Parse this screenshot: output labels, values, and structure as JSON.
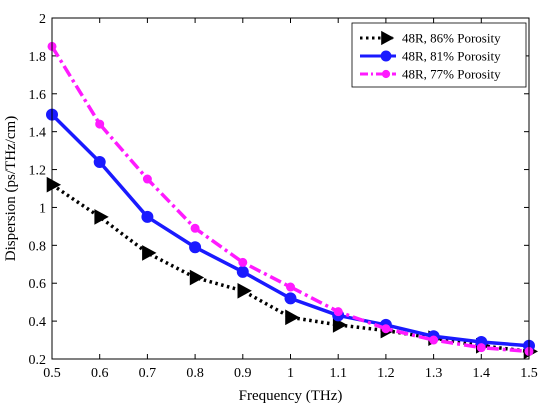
{
  "chart_data": {
    "type": "line",
    "title": "",
    "xlabel": "Frequency (THz)",
    "ylabel": "Dispersion (ps/THz/cm)",
    "xlim": [
      0.5,
      1.5
    ],
    "ylim": [
      0.2,
      2.0
    ],
    "x_ticks": [
      "0.5",
      "0.6",
      "0.7",
      "0.8",
      "0.9",
      "1",
      "1.1",
      "1.2",
      "1.3",
      "1.4",
      "1.5"
    ],
    "y_ticks": [
      "0.2",
      "0.4",
      "0.6",
      "0.8",
      "1",
      "1.2",
      "1.4",
      "1.6",
      "1.8",
      "2"
    ],
    "grid": false,
    "legend_position": "top-right",
    "x": [
      0.5,
      0.6,
      0.7,
      0.8,
      0.9,
      1.0,
      1.1,
      1.2,
      1.3,
      1.4,
      1.5
    ],
    "series": [
      {
        "name": "48R, 86% Porosity",
        "color": "#000000",
        "line_style": "dotted",
        "marker": "triangle-right",
        "values": [
          1.12,
          0.95,
          0.76,
          0.63,
          0.56,
          0.42,
          0.38,
          0.35,
          0.31,
          0.27,
          0.24
        ]
      },
      {
        "name": "48R, 81% Porosity",
        "color": "#1a1aff",
        "line_style": "solid",
        "marker": "circle",
        "values": [
          1.49,
          1.24,
          0.95,
          0.79,
          0.66,
          0.52,
          0.43,
          0.38,
          0.32,
          0.29,
          0.27
        ]
      },
      {
        "name": "48R, 77% Porosity",
        "color": "#ff1aff",
        "line_style": "dashdot",
        "marker": "circle-small",
        "values": [
          1.85,
          1.44,
          1.15,
          0.89,
          0.71,
          0.58,
          0.45,
          0.36,
          0.3,
          0.26,
          0.24
        ]
      }
    ]
  }
}
